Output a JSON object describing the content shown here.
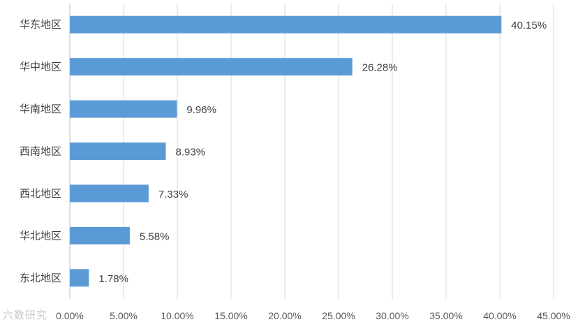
{
  "chart_data": {
    "type": "bar",
    "orientation": "horizontal",
    "categories": [
      "华东地区",
      "华中地区",
      "华南地区",
      "西南地区",
      "西北地区",
      "华北地区",
      "东北地区"
    ],
    "values": [
      40.15,
      26.28,
      9.96,
      8.93,
      7.33,
      5.58,
      1.78
    ],
    "data_labels": [
      "40.15%",
      "26.28%",
      "9.96%",
      "8.93%",
      "7.33%",
      "5.58%",
      "1.78%"
    ],
    "x_ticks": [
      "0.00%",
      "5.00%",
      "10.00%",
      "15.00%",
      "20.00%",
      "25.00%",
      "30.00%",
      "35.00%",
      "40.00%",
      "45.00%"
    ],
    "xlim": [
      0,
      45
    ],
    "grid": "vertical",
    "bar_color": "#5b9bd5",
    "legend": "none"
  },
  "watermark": "六数研究"
}
